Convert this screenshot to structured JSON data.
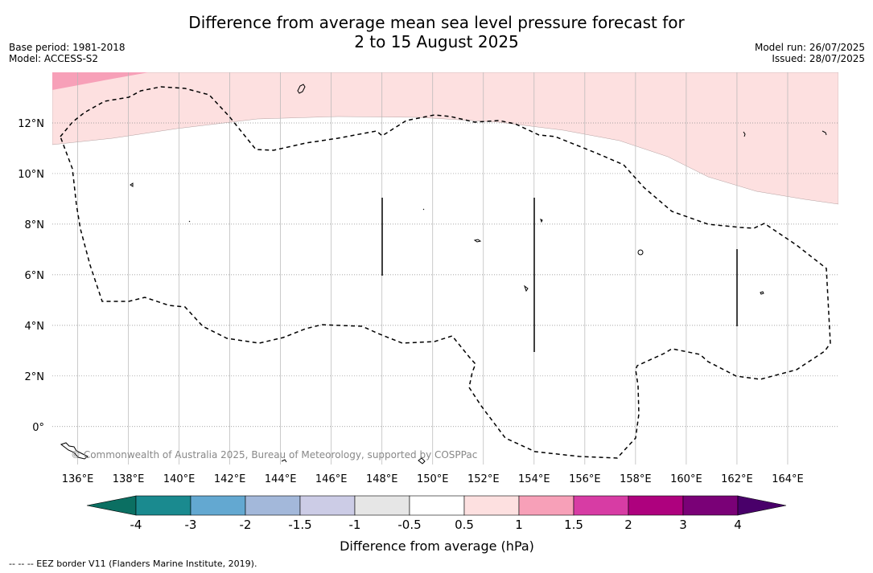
{
  "title": {
    "line1": "Difference from average mean sea level pressure forecast for",
    "line2": "2 to 15 August 2025"
  },
  "meta_left": [
    "Base period: 1981-2018",
    "Model: ACCESS-S2"
  ],
  "meta_right": [
    "Model run: 26/07/2025",
    "Issued: 28/07/2025"
  ],
  "map": {
    "lon_range": [
      135,
      166
    ],
    "lat_range": [
      -1.5,
      14
    ],
    "lon_ticks": [
      "136°E",
      "138°E",
      "140°E",
      "142°E",
      "144°E",
      "146°E",
      "148°E",
      "150°E",
      "152°E",
      "154°E",
      "156°E",
      "158°E",
      "160°E",
      "162°E",
      "164°E"
    ],
    "lat_ticks": [
      "0°",
      "2°N",
      "4°N",
      "6°N",
      "8°N",
      "10°N",
      "12°N"
    ],
    "grid": true,
    "copyright": "© Commonwealth of Australia 2025, Bureau of Meteorology, supported by COSPPac"
  },
  "colorbar": {
    "labels": [
      "-4",
      "-3",
      "-2",
      "-1.5",
      "-1",
      "-0.5",
      "0.5",
      "1",
      "1.5",
      "2",
      "3",
      "4"
    ],
    "colors": [
      "#1a8a8f",
      "#63a8d1",
      "#a3b8da",
      "#cccce6",
      "#e6e6e6",
      "#ffffff",
      "#fde0e0",
      "#f7a0b8",
      "#d73ca4",
      "#ae017e",
      "#7a0177"
    ],
    "under_color": "#0b6f62",
    "over_color": "#49006a",
    "label": "Difference from average (hPa)"
  },
  "footnote": "-- -- -- EEZ border V11 (Flanders Marine Institute, 2019)."
}
